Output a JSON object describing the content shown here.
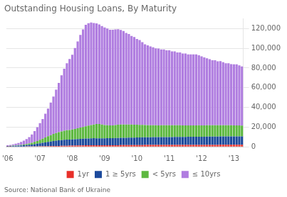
{
  "chart_data": {
    "type": "bar",
    "stacked": true,
    "title": "Outstanding Housing Loans, By Maturity",
    "source": "Source: National Bank of Ukraine",
    "categories": [
      "'06",
      null,
      null,
      null,
      null,
      null,
      null,
      null,
      null,
      null,
      null,
      null,
      "'07",
      null,
      null,
      null,
      null,
      null,
      null,
      null,
      null,
      null,
      null,
      null,
      "'08",
      null,
      null,
      null,
      null,
      null,
      null,
      null,
      null,
      null,
      null,
      null,
      "'09",
      null,
      null,
      null,
      null,
      null,
      null,
      null,
      null,
      null,
      null,
      null,
      "'10",
      null,
      null,
      null,
      null,
      null,
      null,
      null,
      null,
      null,
      null,
      null,
      "'11",
      null,
      null,
      null,
      null,
      null,
      null,
      null,
      null,
      null,
      null,
      null,
      "'12",
      null,
      null,
      null,
      null,
      null,
      null,
      null,
      null,
      null,
      null,
      null,
      "'13",
      null,
      null,
      null
    ],
    "series": [
      {
        "name": "1yr",
        "color": "#e8302a",
        "values": [
          200,
          220,
          260,
          290,
          320,
          360,
          380,
          420,
          450,
          480,
          530,
          580,
          630,
          660,
          700,
          740,
          780,
          820,
          860,
          900,
          960,
          1020,
          1080,
          1140,
          1200,
          1280,
          1350,
          1420,
          1480,
          1540,
          1580,
          1600,
          1600,
          1580,
          1560,
          1540,
          1550,
          1570,
          1580,
          1600,
          1620,
          1650,
          1680,
          1700,
          1720,
          1740,
          1760,
          1780,
          1800,
          1820,
          1840,
          1860,
          1880,
          1900,
          1900,
          1900,
          1900,
          1910,
          1910,
          1920,
          1920,
          1930,
          1940,
          1950,
          1960,
          1960,
          1970,
          1970,
          1980,
          1980,
          1990,
          1990,
          2000,
          2000,
          2010,
          2010,
          2020,
          2020,
          2030,
          2040,
          2050,
          2060,
          2070,
          2080,
          2090,
          2100,
          2100,
          2100
        ]
      },
      {
        "name": "1 ≥ 5yrs",
        "color": "#1c4a9c",
        "values": [
          400,
          500,
          620,
          740,
          860,
          1000,
          1200,
          1400,
          1650,
          1900,
          2200,
          2600,
          3000,
          3400,
          3800,
          4200,
          4600,
          5000,
          5400,
          5700,
          5900,
          6100,
          6200,
          6200,
          6300,
          6400,
          6500,
          6600,
          6700,
          6800,
          6900,
          7000,
          7100,
          7100,
          7100,
          7100,
          7100,
          7200,
          7200,
          7200,
          7300,
          7300,
          7400,
          7400,
          7500,
          7500,
          7600,
          7600,
          7700,
          7700,
          7800,
          7800,
          7800,
          7800,
          7900,
          7900,
          7900,
          7900,
          8000,
          8000,
          8000,
          8000,
          8100,
          8100,
          8100,
          8100,
          8100,
          8200,
          8200,
          8200,
          8200,
          8300,
          8300,
          8300,
          8300,
          8400,
          8400,
          8400,
          8400,
          8500,
          8500,
          8500,
          8500,
          8500,
          8500,
          8500,
          8500,
          8500
        ]
      },
      {
        "name": "< 5yrs",
        "color": "#5db840",
        "values": [
          200,
          250,
          300,
          400,
          500,
          650,
          800,
          1000,
          1300,
          1700,
          2200,
          2800,
          3500,
          4200,
          5000,
          5800,
          6500,
          7200,
          7800,
          8300,
          8800,
          9200,
          9500,
          9700,
          10000,
          10500,
          11000,
          11500,
          12000,
          12500,
          13000,
          13500,
          14000,
          14500,
          14500,
          14000,
          13500,
          13200,
          13000,
          13000,
          13200,
          13400,
          13500,
          13500,
          13400,
          13300,
          13200,
          13100,
          13000,
          12800,
          12600,
          12400,
          12300,
          12200,
          12100,
          12100,
          12000,
          12000,
          12000,
          12000,
          12000,
          11900,
          11900,
          11800,
          11800,
          11700,
          11700,
          11600,
          11600,
          11600,
          11600,
          11600,
          11500,
          11500,
          11500,
          11500,
          11500,
          11500,
          11400,
          11400,
          11300,
          11300,
          11300,
          11300,
          11200,
          11200,
          11100,
          11000
        ]
      },
      {
        "name": "≤ 10yrs",
        "color": "#b07de0",
        "values": [
          800,
          1000,
          1300,
          1700,
          2200,
          2900,
          3800,
          5000,
          6500,
          8500,
          11000,
          14000,
          17000,
          20000,
          24000,
          28000,
          33000,
          38000,
          44000,
          50000,
          57000,
          63000,
          68000,
          72000,
          76000,
          82000,
          88000,
          94000,
          99000,
          103000,
          104000,
          104000,
          103000,
          102000,
          101000,
          100000,
          99000,
          98000,
          97000,
          97000,
          97000,
          97000,
          96000,
          95000,
          93000,
          92000,
          90000,
          89000,
          87000,
          86000,
          84000,
          82000,
          81000,
          80000,
          79000,
          78000,
          78000,
          77000,
          77000,
          76000,
          76000,
          75000,
          75000,
          74000,
          74000,
          73000,
          73000,
          72000,
          72000,
          72000,
          72000,
          71000,
          70000,
          69000,
          68000,
          67000,
          66000,
          66000,
          65000,
          65000,
          64000,
          63000,
          63000,
          62000,
          62000,
          62000,
          61000,
          60000
        ]
      }
    ],
    "ylim": [
      0,
      130000
    ],
    "yticks": [
      0,
      {
        "value": 20000,
        "label": "20,000"
      },
      {
        "value": 40000,
        "label": "40,000"
      },
      {
        "value": 60000,
        "label": "60,000"
      },
      {
        "value": 80000,
        "label": "80,000"
      },
      {
        "value": 100000,
        "label": "100,000"
      },
      {
        "value": 120000,
        "label": "120,000"
      }
    ],
    "grid": true,
    "legend": "bottom"
  }
}
